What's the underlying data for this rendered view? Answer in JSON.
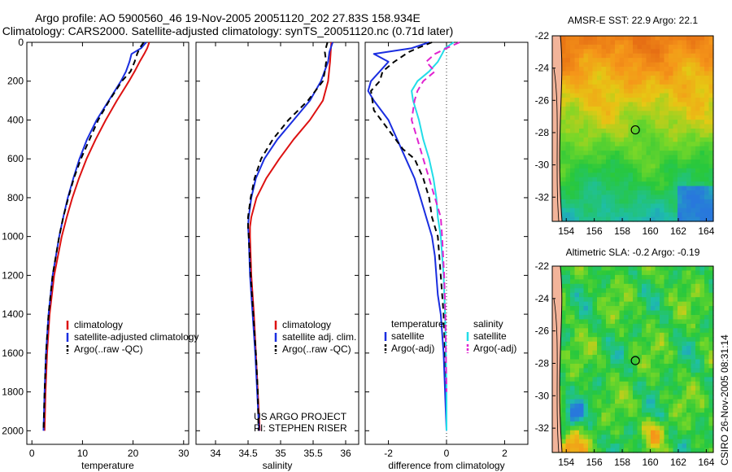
{
  "title_line1": "Argo profile: AO 5900560_46 19-Nov-2005 20051120_202 27.83S 158.934E",
  "title_line2": "Climatology: CARS2000. Satellite-adjusted climatology: synTS_20051120.nc (0.71d later)",
  "stamp": "CSIRO 26-Nov-2005 08:31:14",
  "colors": {
    "climatology": "#dd1111",
    "satellite": "#1a2ee0",
    "argo": "#000000",
    "sal_satellite": "#22dde8",
    "sal_argo": "#e024d0"
  },
  "chart_data": [
    {
      "type": "line",
      "name": "temperature-profile",
      "xlabel": "temperature",
      "ylabel": "",
      "xlim": [
        -1,
        31
      ],
      "ylim": [
        2070,
        0
      ],
      "xticks": [
        "0",
        "10",
        "20",
        "30"
      ],
      "yticks": [
        "0",
        "200",
        "400",
        "600",
        "800",
        "1000",
        "1200",
        "1400",
        "1600",
        "1800",
        "2000"
      ],
      "legend": [
        "climatology",
        "satellite-adjusted climatology",
        "Argo(..raw -QC)"
      ],
      "series": [
        {
          "name": "climatology",
          "style": "solid",
          "depth": [
            0,
            30,
            60,
            100,
            150,
            200,
            300,
            400,
            500,
            600,
            700,
            800,
            900,
            1000,
            1200,
            1400,
            1600,
            1800,
            2000
          ],
          "values": [
            23.2,
            22.8,
            22.2,
            21.3,
            20.3,
            19.2,
            16.8,
            14.6,
            12.6,
            10.8,
            9.3,
            8.0,
            6.9,
            5.9,
            4.4,
            3.5,
            3.0,
            2.7,
            2.5
          ]
        },
        {
          "name": "satellite-adjusted climatology",
          "style": "solid",
          "depth": [
            0,
            30,
            60,
            100,
            150,
            200,
            300,
            400,
            500,
            600,
            700,
            800,
            900,
            1000,
            1200,
            1400,
            1600,
            1800,
            2000
          ],
          "values": [
            22.6,
            21.6,
            19.7,
            19.3,
            18.6,
            17.6,
            15.2,
            12.8,
            10.9,
            9.4,
            8.2,
            7.1,
            6.2,
            5.4,
            4.1,
            3.3,
            2.8,
            2.5,
            2.3
          ]
        },
        {
          "name": "Argo(..raw -QC)",
          "style": "dashed",
          "depth": [
            0,
            30,
            60,
            100,
            150,
            200,
            300,
            400,
            500,
            600,
            700,
            800,
            900,
            1000,
            1200,
            1400,
            1600,
            1800,
            2000
          ],
          "values": [
            22.1,
            21.3,
            20.8,
            20.3,
            19.5,
            17.8,
            15.3,
            13.1,
            11.4,
            9.7,
            8.3,
            7.2,
            6.2,
            5.4,
            4.1,
            3.3,
            2.8,
            2.5,
            2.3
          ]
        }
      ]
    },
    {
      "type": "line",
      "name": "salinity-profile",
      "xlabel": "salinity",
      "ylabel": "",
      "xlim": [
        33.7,
        36.2
      ],
      "ylim": [
        2070,
        0
      ],
      "xticks": [
        "34",
        "34.5",
        "35",
        "35.5",
        "36"
      ],
      "legend": [
        "climatology",
        "satellite adj. clim.",
        "Argo(..raw -QC)"
      ],
      "annotation": [
        "US ARGO PROJECT",
        "PI: STEPHEN RISER"
      ],
      "series": [
        {
          "name": "climatology",
          "style": "solid",
          "depth": [
            0,
            50,
            100,
            200,
            300,
            400,
            500,
            600,
            700,
            800,
            900,
            950,
            1000,
            1200,
            1400,
            1600,
            1800,
            2000
          ],
          "values": [
            35.78,
            35.77,
            35.76,
            35.73,
            35.65,
            35.45,
            35.2,
            34.98,
            34.78,
            34.63,
            34.55,
            34.53,
            34.53,
            34.55,
            34.59,
            34.62,
            34.65,
            34.68
          ]
        },
        {
          "name": "satellite adj. clim.",
          "style": "solid",
          "depth": [
            0,
            50,
            100,
            200,
            300,
            400,
            500,
            600,
            700,
            800,
            900,
            950,
            1000,
            1200,
            1400,
            1600,
            1800,
            2000
          ],
          "values": [
            35.8,
            35.75,
            35.73,
            35.62,
            35.45,
            35.2,
            34.95,
            34.75,
            34.62,
            34.55,
            34.51,
            34.5,
            34.51,
            34.53,
            34.57,
            34.61,
            34.64,
            34.67
          ]
        },
        {
          "name": "Argo(..raw -QC)",
          "style": "dashed",
          "depth": [
            0,
            50,
            100,
            150,
            200,
            300,
            400,
            500,
            600,
            700,
            800,
            900,
            950,
            1000,
            1200,
            1400,
            1600,
            1800,
            2000
          ],
          "values": [
            35.72,
            35.68,
            35.7,
            35.68,
            35.65,
            35.42,
            35.12,
            34.88,
            34.7,
            34.6,
            34.54,
            34.5,
            34.5,
            34.51,
            34.54,
            34.58,
            34.62,
            34.65,
            34.66
          ]
        }
      ]
    },
    {
      "type": "line",
      "name": "difference-profile",
      "xlabel": "difference from climatology",
      "ylabel": "",
      "xlim": [
        -2.8,
        2.8
      ],
      "ylim": [
        2070,
        0
      ],
      "xticks": [
        "-2",
        "0",
        "2"
      ],
      "legend_temperature_title": "temperature",
      "legend_salinity_title": "salinity",
      "legend_temperature": [
        "satellite",
        "Argo(-adj)"
      ],
      "legend_salinity": [
        "satellite",
        "Argo(-adj)"
      ],
      "series": [
        {
          "name": "temperature satellite",
          "style": "solid",
          "depth": [
            0,
            30,
            60,
            100,
            150,
            200,
            250,
            300,
            400,
            500,
            600,
            700,
            800,
            900,
            1000,
            1100,
            1200,
            1300,
            1400,
            1600,
            1800,
            2000
          ],
          "values": [
            -0.6,
            -1.2,
            -2.5,
            -2.0,
            -2.3,
            -2.6,
            -2.7,
            -2.5,
            -2.0,
            -1.7,
            -1.4,
            -1.1,
            -0.9,
            -0.7,
            -0.5,
            -0.4,
            -0.35,
            -0.3,
            -0.2,
            -0.1,
            -0.05,
            0.0
          ]
        },
        {
          "name": "temperature Argo(-adj)",
          "style": "dashed",
          "depth": [
            0,
            30,
            50,
            100,
            150,
            200,
            250,
            350,
            450,
            550,
            600,
            700,
            800,
            900,
            1000,
            1200,
            1400,
            1600,
            1800
          ],
          "values": [
            -0.5,
            -1.0,
            -1.3,
            -1.8,
            -2.2,
            -2.3,
            -2.6,
            -2.5,
            -2.0,
            -1.5,
            -1.1,
            -0.8,
            -0.6,
            -0.5,
            -0.3,
            -0.2,
            -0.1,
            -0.05,
            0.0
          ]
        },
        {
          "name": "salinity satellite",
          "style": "solid",
          "depth": [
            0,
            30,
            60,
            100,
            150,
            200,
            250,
            300,
            350,
            400,
            500,
            600,
            700,
            800,
            900,
            1000,
            1200,
            1400,
            1600,
            1800,
            2000
          ],
          "values": [
            0.25,
            -0.05,
            -0.15,
            -0.3,
            -0.6,
            -1.0,
            -1.2,
            -1.15,
            -1.05,
            -0.95,
            -0.8,
            -0.6,
            -0.45,
            -0.35,
            -0.3,
            -0.2,
            -0.1,
            -0.05,
            -0.02,
            0.0,
            0.0
          ]
        },
        {
          "name": "salinity Argo(-adj)",
          "style": "dashed",
          "depth": [
            0,
            30,
            60,
            100,
            150,
            200,
            250,
            300,
            400,
            500,
            600,
            700,
            800,
            900,
            1000,
            1200,
            1400,
            1600,
            1800
          ],
          "values": [
            0.45,
            0.0,
            -0.4,
            -0.7,
            -0.4,
            -0.8,
            -1.0,
            -1.1,
            -1.2,
            -1.0,
            -0.8,
            -0.6,
            -0.4,
            -0.2,
            -0.15,
            -0.08,
            -0.04,
            -0.02,
            0.0
          ]
        }
      ]
    },
    {
      "type": "heatmap",
      "name": "sst-map",
      "title": "AMSR-E SST: 22.9 Argo: 22.1",
      "xticks": [
        "154",
        "156",
        "158",
        "160",
        "162",
        "164"
      ],
      "yticks": [
        "-22",
        "-24",
        "-26",
        "-28",
        "-30",
        "-32"
      ],
      "xlim": [
        153,
        164.5
      ],
      "ylim": [
        -33.5,
        -22
      ],
      "float_position": {
        "lon": 158.934,
        "lat": -27.83
      }
    },
    {
      "type": "heatmap",
      "name": "sla-map",
      "title": "Altimetric SLA: -0.2 Argo: -0.19",
      "xticks": [
        "154",
        "156",
        "158",
        "160",
        "162",
        "164"
      ],
      "yticks": [
        "-22",
        "-24",
        "-26",
        "-28",
        "-30",
        "-32"
      ],
      "xlim": [
        153,
        164.5
      ],
      "ylim": [
        -33.5,
        -22
      ],
      "float_position": {
        "lon": 158.934,
        "lat": -27.83
      }
    }
  ]
}
